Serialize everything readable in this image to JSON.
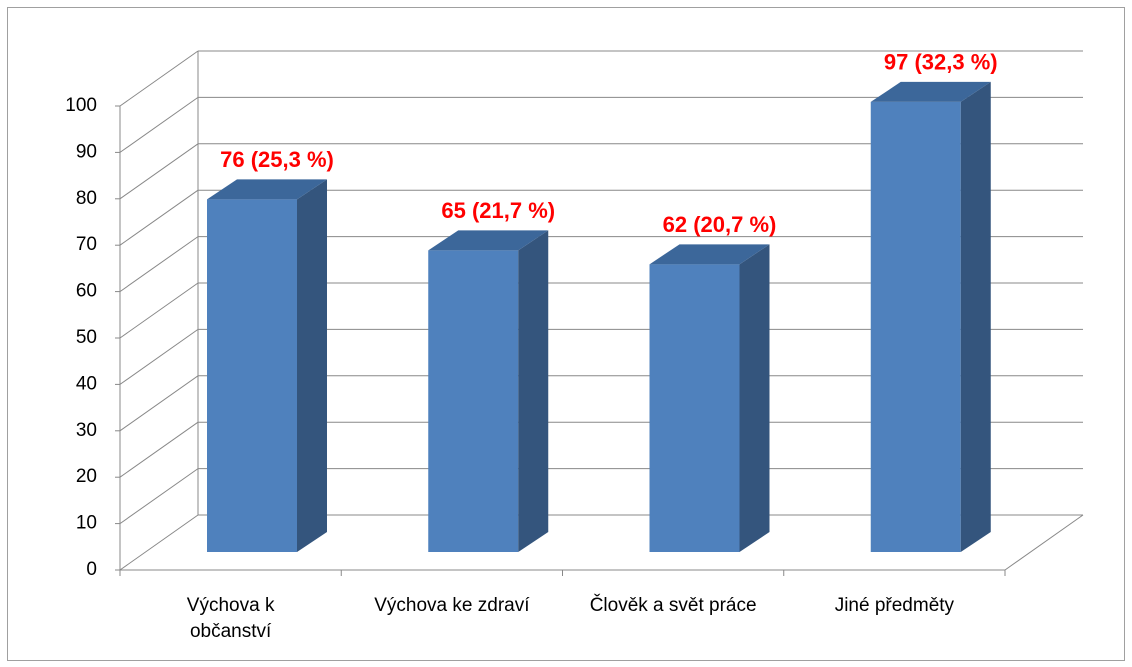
{
  "chart_data": {
    "type": "bar3d",
    "categories": [
      "Výchova k občanství",
      "Výchova ke zdraví",
      "Člověk a svět práce",
      "Jiné předměty"
    ],
    "values": [
      76,
      65,
      62,
      97
    ],
    "value_labels": [
      "76 (25,3 %)",
      "65 (21,7 %)",
      "62 (20,7 %)",
      "97 (32,3 %)"
    ],
    "color": "#4f81bd",
    "ylim": [
      0,
      100
    ],
    "yticks": [
      0,
      10,
      20,
      30,
      40,
      50,
      60,
      70,
      80,
      90,
      100
    ],
    "grid": true
  }
}
